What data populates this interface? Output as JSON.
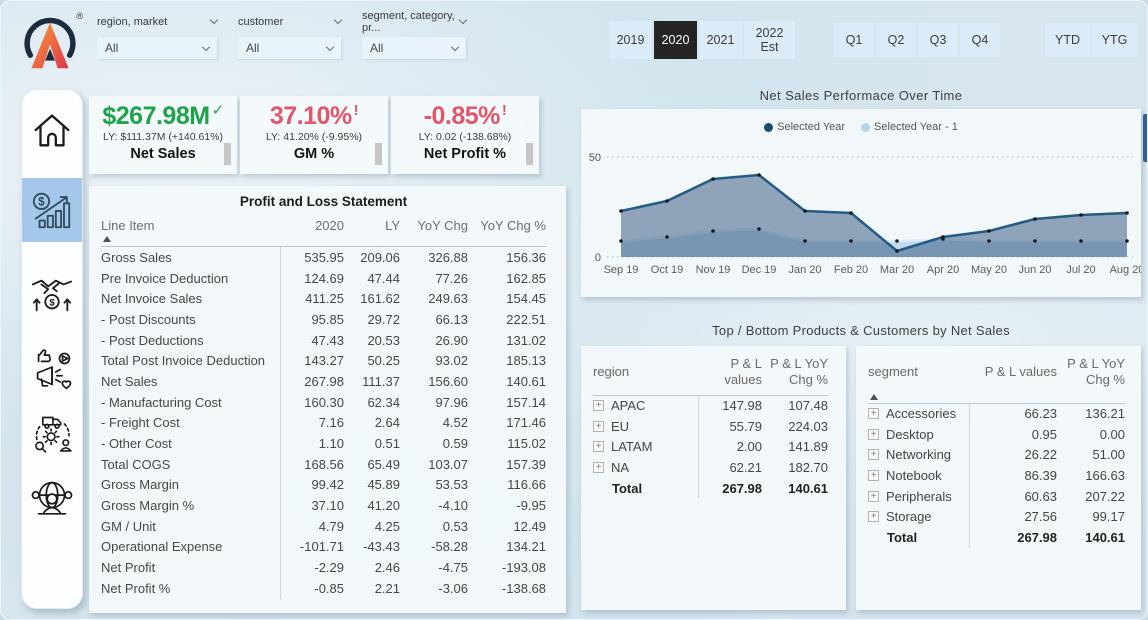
{
  "logo": {
    "mark": "®"
  },
  "filters": [
    {
      "label": "region, market",
      "value": "All"
    },
    {
      "label": "customer",
      "value": "All"
    },
    {
      "label": "segment, category, pr...",
      "value": "All"
    }
  ],
  "time": {
    "years": [
      {
        "label": "2019",
        "active": false
      },
      {
        "label": "2020",
        "active": true
      },
      {
        "label": "2021",
        "active": false
      },
      {
        "label": "2022\nEst",
        "active": false,
        "wide": true
      }
    ],
    "quarters": [
      "Q1",
      "Q2",
      "Q3",
      "Q4"
    ],
    "extras": [
      "YTD",
      "YTG"
    ]
  },
  "sidebar": {
    "items": [
      {
        "name": "home",
        "active": false
      },
      {
        "name": "sales-analytics",
        "active": true
      },
      {
        "name": "partnership-deals",
        "active": false
      },
      {
        "name": "marketing",
        "active": false
      },
      {
        "name": "supply-chain",
        "active": false
      },
      {
        "name": "global-customers",
        "active": false
      }
    ]
  },
  "kpis": [
    {
      "value": "$267.98M",
      "indicator": "✓",
      "ly": "LY: $111.37M (+140.61%)",
      "label": "Net Sales",
      "color": "#1ea34a"
    },
    {
      "value": "37.10%",
      "indicator": "!",
      "ly": "LY: 41.20% (-9.95%)",
      "label": "GM %",
      "color": "#e2556a"
    },
    {
      "value": "-0.85%",
      "indicator": "!",
      "ly": "LY: 0.02 (-138.68%)",
      "label": "Net Profit %",
      "color": "#e2556a"
    }
  ],
  "pnl": {
    "title": "Profit and Loss Statement",
    "columns": [
      "Line Item",
      "2020",
      "LY",
      "YoY Chg",
      "YoY Chg %"
    ],
    "rows": [
      [
        "Gross Sales",
        "535.95",
        "209.06",
        "326.88",
        "156.36"
      ],
      [
        "Pre Invoice Deduction",
        "124.69",
        "47.44",
        "77.26",
        "162.85"
      ],
      [
        "Net Invoice Sales",
        "411.25",
        "161.62",
        "249.63",
        "154.45"
      ],
      [
        "- Post Discounts",
        "95.85",
        "29.72",
        "66.13",
        "222.51"
      ],
      [
        "- Post Deductions",
        "47.43",
        "20.53",
        "26.90",
        "131.02"
      ],
      [
        "Total Post Invoice Deduction",
        "143.27",
        "50.25",
        "93.02",
        "185.13"
      ],
      [
        "Net Sales",
        "267.98",
        "111.37",
        "156.60",
        "140.61"
      ],
      [
        "- Manufacturing Cost",
        "160.30",
        "62.34",
        "97.96",
        "157.14"
      ],
      [
        "- Freight Cost",
        "7.16",
        "2.64",
        "4.52",
        "171.46"
      ],
      [
        "- Other Cost",
        "1.10",
        "0.51",
        "0.59",
        "115.02"
      ],
      [
        "Total COGS",
        "168.56",
        "65.49",
        "103.07",
        "157.39"
      ],
      [
        "Gross Margin",
        "99.42",
        "45.89",
        "53.53",
        "116.66"
      ],
      [
        "Gross Margin %",
        "37.10",
        "41.20",
        "-4.10",
        "-9.95"
      ],
      [
        "GM / Unit",
        "4.79",
        "4.25",
        "0.53",
        "12.49"
      ],
      [
        "Operational Expense",
        "-101.71",
        "-43.43",
        "-58.28",
        "134.21"
      ],
      [
        "Net Profit",
        "-2.29",
        "2.46",
        "-4.75",
        "-193.08"
      ],
      [
        "Net Profit %",
        "-0.85",
        "2.21",
        "-3.06",
        "-138.68"
      ]
    ]
  },
  "chart_data": {
    "type": "area",
    "title": "Net Sales Performace Over Time",
    "categories": [
      "Sep 19",
      "Oct 19",
      "Nov 19",
      "Dec 19",
      "Jan 20",
      "Feb 20",
      "Mar 20",
      "Apr 20",
      "May 20",
      "Jun 20",
      "Jul 20",
      "Aug 20"
    ],
    "series": [
      {
        "name": "Selected Year",
        "values": [
          23,
          28,
          39,
          41,
          23,
          22,
          3,
          10,
          13,
          19,
          21,
          22
        ],
        "line": "#235a86",
        "fill": "rgba(52,86,126,0.52)",
        "dot": "#1d4a73"
      },
      {
        "name": "Selected Year - 1",
        "values": [
          8,
          10,
          13,
          14,
          8,
          8,
          8,
          9,
          8,
          8,
          8,
          8
        ],
        "line": "#e0eef9",
        "fill": "rgba(186,213,233,0.85)",
        "dot": "#b5d4ea"
      }
    ],
    "marker_color": "#1a1a1a",
    "ylim": [
      0,
      50
    ],
    "yticks": [
      0,
      50
    ],
    "legend_position": "top",
    "grid": "dotted"
  },
  "bottom_title": "Top / Bottom Products & Customers by Net Sales",
  "region_table": {
    "columns": [
      "region",
      "P & L values",
      "P & L YoY Chg %"
    ],
    "rows": [
      [
        "APAC",
        "147.98",
        "107.48"
      ],
      [
        "EU",
        "55.79",
        "224.03"
      ],
      [
        "LATAM",
        "2.00",
        "141.89"
      ],
      [
        "NA",
        "62.21",
        "182.70"
      ]
    ],
    "total": [
      "Total",
      "267.98",
      "140.61"
    ]
  },
  "segment_table": {
    "columns": [
      "segment",
      "P & L values",
      "P & L YoY Chg %"
    ],
    "rows": [
      [
        "Accessories",
        "66.23",
        "136.21"
      ],
      [
        "Desktop",
        "0.95",
        "0.00"
      ],
      [
        "Networking",
        "26.22",
        "51.00"
      ],
      [
        "Notebook",
        "86.39",
        "166.63"
      ],
      [
        "Peripherals",
        "60.63",
        "207.22"
      ],
      [
        "Storage",
        "27.56",
        "99.17"
      ]
    ],
    "total": [
      "Total",
      "267.98",
      "140.61"
    ]
  }
}
